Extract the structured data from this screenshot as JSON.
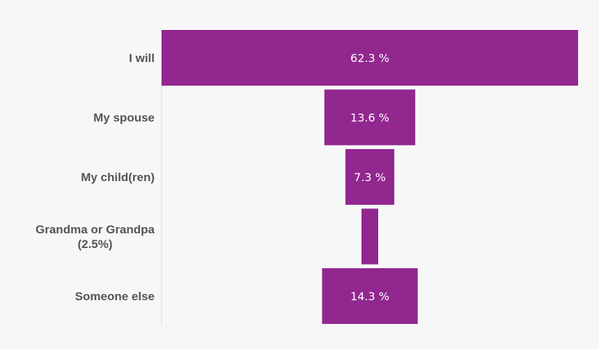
{
  "chart_data": {
    "type": "bar",
    "orientation": "horizontal-funnel",
    "categories": [
      "I will",
      "My spouse",
      "My child(ren)",
      "Grandma or Grandpa (2.5%)",
      "Someone else"
    ],
    "category_lines": [
      [
        "I will"
      ],
      [
        "My spouse"
      ],
      [
        "My child(ren)"
      ],
      [
        "Grandma or Grandpa",
        "(2.5%)"
      ],
      [
        "Someone else"
      ]
    ],
    "values": [
      62.3,
      13.6,
      7.3,
      2.5,
      14.3
    ],
    "data_labels": [
      "62.3 %",
      "13.6 %",
      "7.3 %",
      "",
      "14.3 %"
    ],
    "title": "",
    "xlabel": "",
    "ylabel": "",
    "xlim": [
      0,
      62.3
    ],
    "grid": false,
    "legend": "none",
    "colors": {
      "bar": "#92278f",
      "background": "#f7f7f8",
      "label_text": "#555555",
      "value_text": "#ffffff",
      "axis": "#d9d9d9"
    }
  }
}
